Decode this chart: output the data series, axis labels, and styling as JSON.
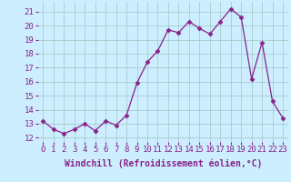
{
  "x": [
    0,
    1,
    2,
    3,
    4,
    5,
    6,
    7,
    8,
    9,
    10,
    11,
    12,
    13,
    14,
    15,
    16,
    17,
    18,
    19,
    20,
    21,
    22,
    23
  ],
  "y": [
    13.2,
    12.6,
    12.3,
    12.6,
    13.0,
    12.5,
    13.2,
    12.9,
    13.6,
    15.9,
    17.4,
    18.2,
    19.7,
    19.5,
    20.3,
    19.8,
    19.4,
    20.3,
    21.2,
    20.6,
    16.2,
    18.8,
    14.6,
    13.4
  ],
  "line_color": "#882288",
  "marker": "D",
  "marker_size": 2.5,
  "bg_color": "#cceeff",
  "grid_color": "#aacccc",
  "xlabel": "Windchill (Refroidissement éolien,°C)",
  "xlabel_fontsize": 7.0,
  "ylabel_ticks": [
    12,
    13,
    14,
    15,
    16,
    17,
    18,
    19,
    20,
    21
  ],
  "xtick_labels": [
    "0",
    "1",
    "2",
    "3",
    "4",
    "5",
    "6",
    "7",
    "8",
    "9",
    "10",
    "11",
    "12",
    "13",
    "14",
    "15",
    "16",
    "17",
    "18",
    "19",
    "20",
    "21",
    "22",
    "23"
  ],
  "xlim": [
    -0.5,
    23.5
  ],
  "ylim": [
    11.7,
    21.7
  ],
  "tick_fontsize": 6.5
}
